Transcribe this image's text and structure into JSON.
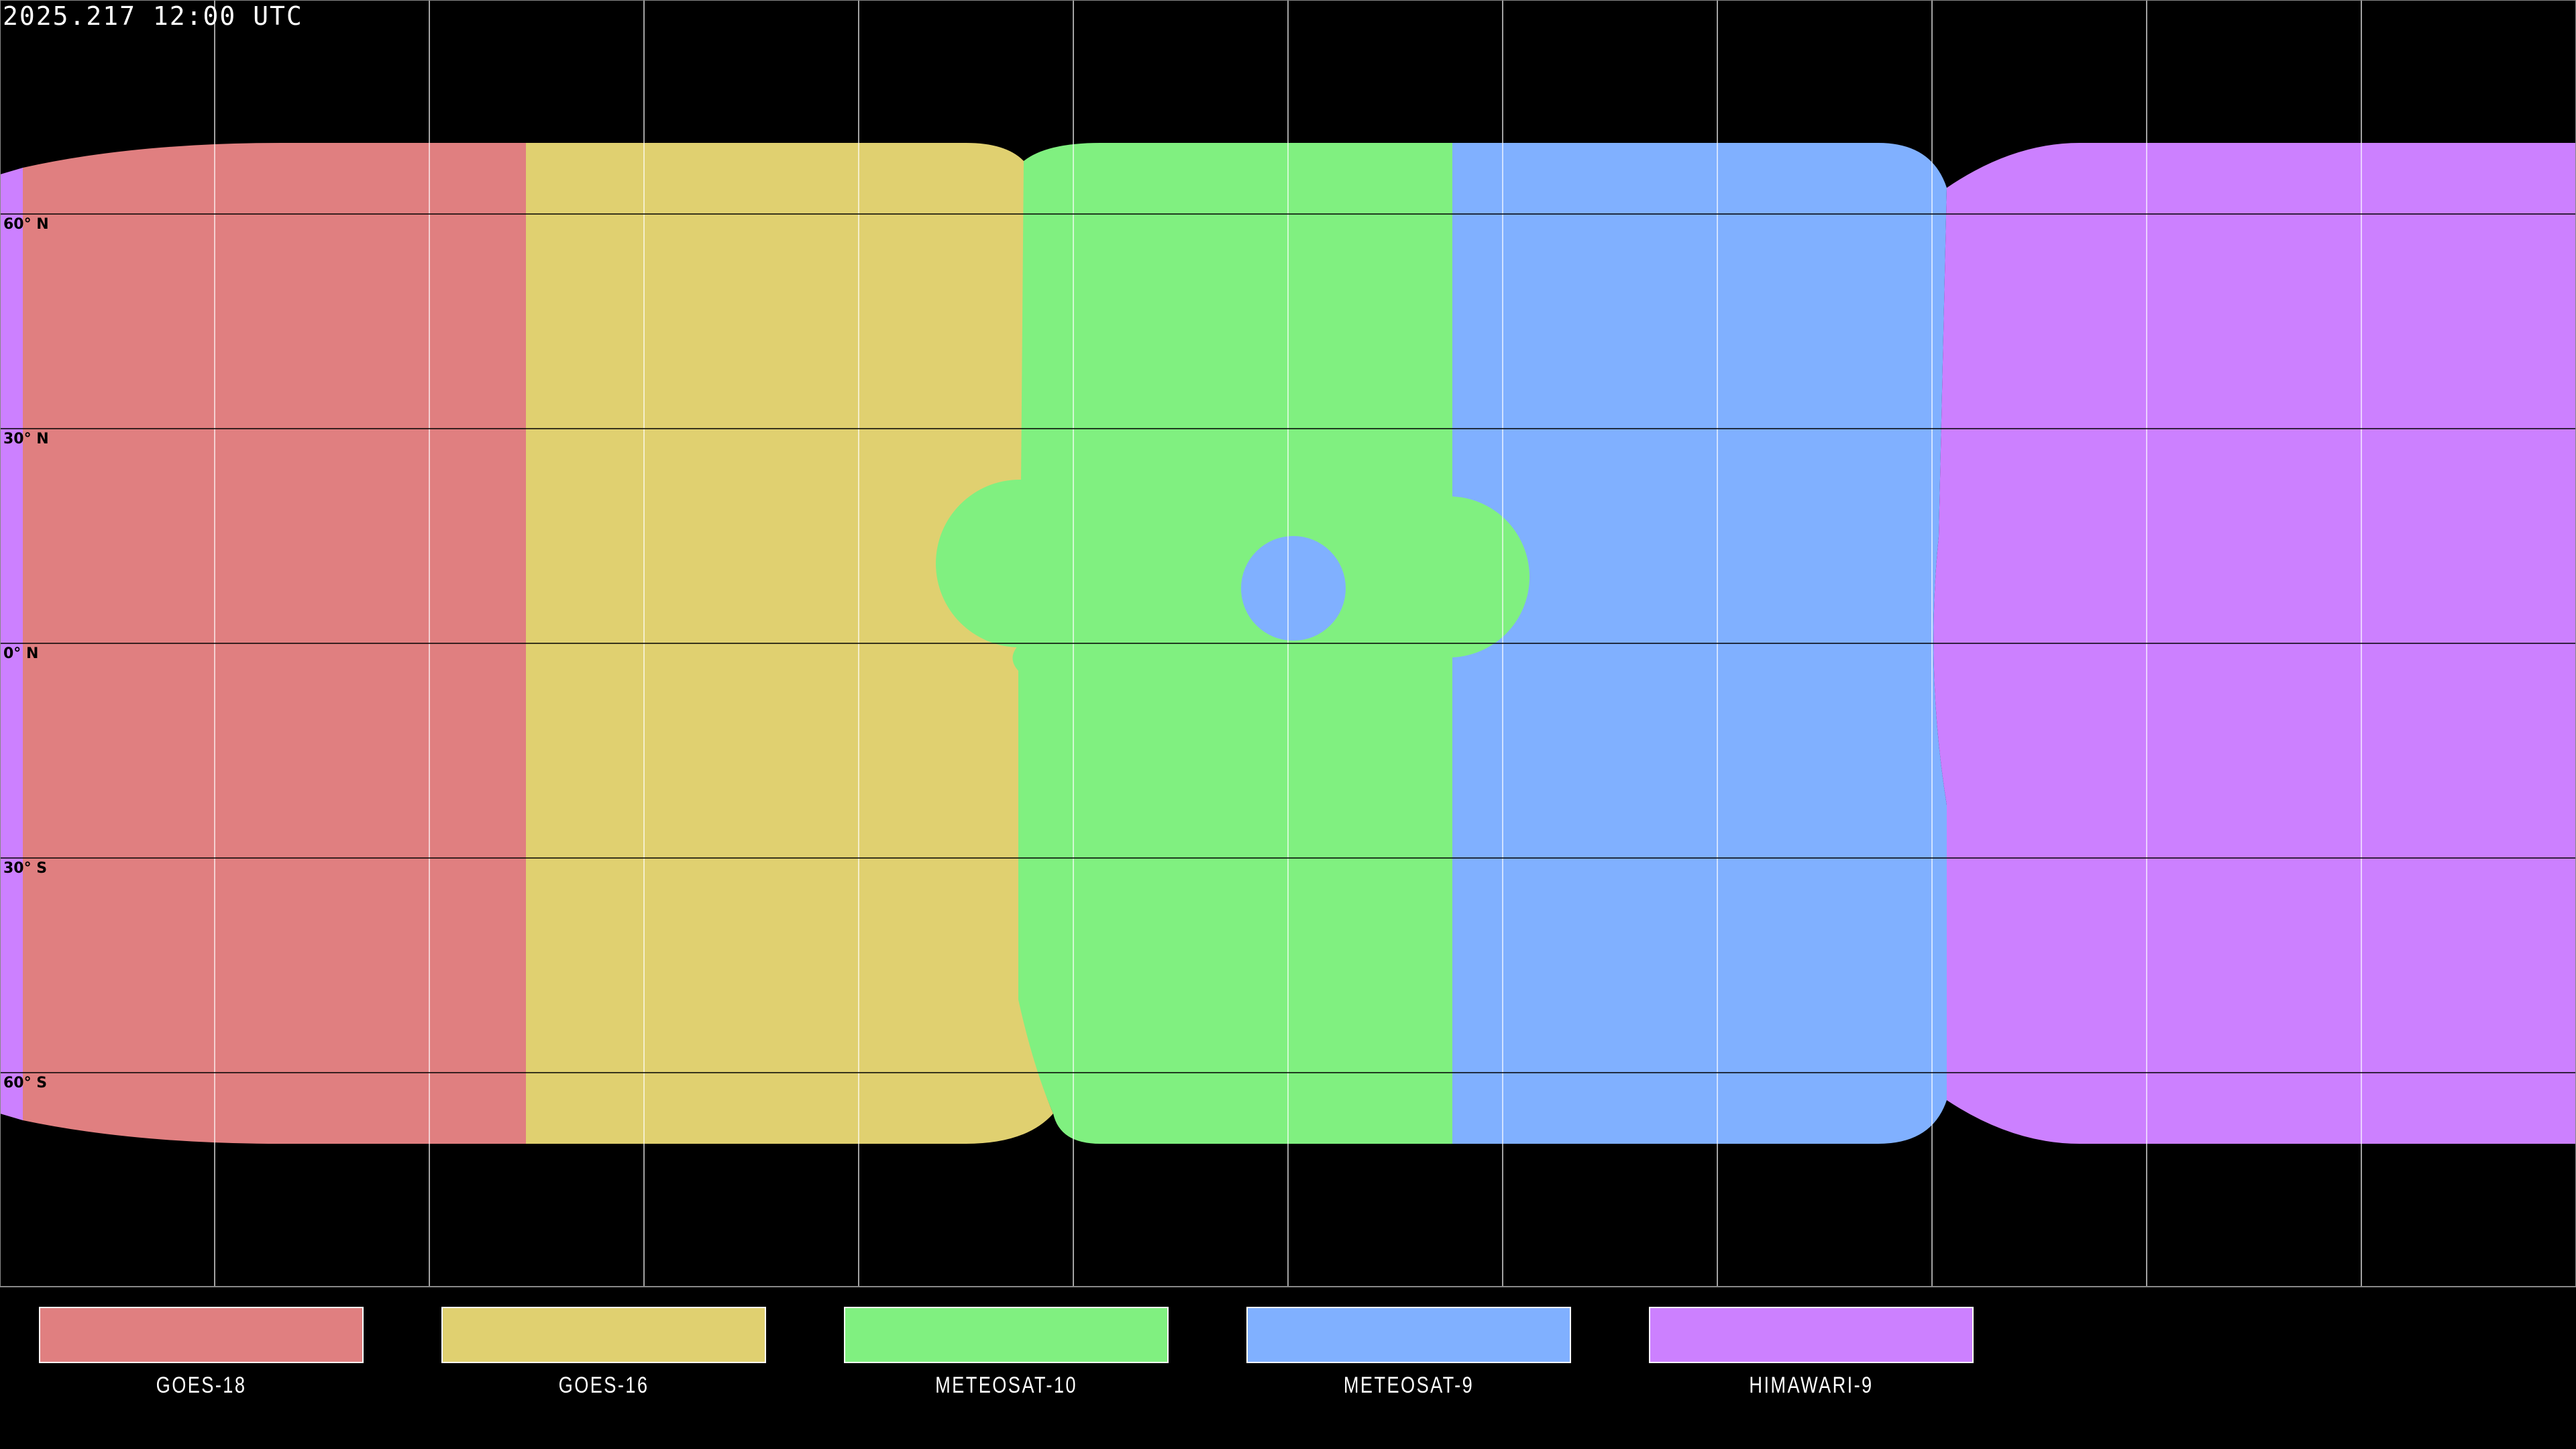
{
  "title": "2025.217 12:00 UTC",
  "lat_labels": [
    "60° N",
    "30° N",
    "0° N",
    "30° S",
    "60° S"
  ],
  "legend": [
    {
      "name": "GOES-18",
      "color": "#e07f80"
    },
    {
      "name": "GOES-16",
      "color": "#e0d070"
    },
    {
      "name": "METEOSAT-10",
      "color": "#80f080"
    },
    {
      "name": "METEOSAT-9",
      "color": "#80b0ff"
    },
    {
      "name": "HIMAWARI-9",
      "color": "#cc80ff"
    }
  ],
  "map": {
    "projection": "equirectangular",
    "grid_spacing_deg": 30,
    "background": "#000000"
  }
}
